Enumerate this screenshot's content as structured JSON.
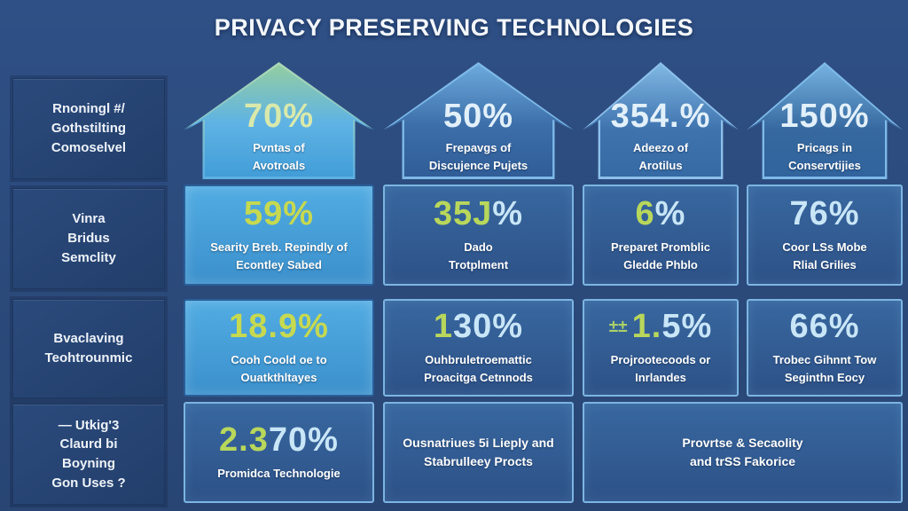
{
  "title": "PRIVACY PRESERVING TECHNOLOGIES",
  "colors": {
    "background": "#2b4a7b",
    "card_border_light_blue": "#7cb5e2",
    "card_dark_fill": "#32609a",
    "card_light_fill": "#45a2d9",
    "accent_green": "#b8d75b",
    "number_light_blue": "#c8e6f8",
    "title_text": "#f3f7fc"
  },
  "sidebar": {
    "items": [
      {
        "label": "Rnoningl #/\nGothstilting\nComoselvel"
      },
      {
        "label": "Vinra\nBridus\nSemclity"
      },
      {
        "label": "Bvaclaving\nTeohtrounmic"
      },
      {
        "label": "— Utkig'3\nClaurd bi\nBoyning\nGon Uses ?"
      }
    ]
  },
  "cards": {
    "r1c1": {
      "accent": "",
      "value": "70%",
      "label": "Pvntas of\nAvotroals"
    },
    "r1c2": {
      "accent": "",
      "value": "50%",
      "label": "Frepavgs of\nDiscujence Pujets"
    },
    "r1c3": {
      "accent": "",
      "value": "354.%",
      "label": "Adeezo of\nArotilus"
    },
    "r1c4": {
      "accent": "",
      "value": "150%",
      "label": "Pricags in\nConservtijies"
    },
    "r2c1": {
      "accent": "59%",
      "value": "",
      "label": "Searity Breb. Repindly of\nEcontley Sabed"
    },
    "r2c2": {
      "accent": "35J",
      "value": "%",
      "label": "Dado\nTrotplment"
    },
    "r2c3": {
      "accent": "6",
      "value": "%",
      "label": "Preparet Promblic\nGledde Phblo"
    },
    "r2c4": {
      "accent": "",
      "value": "76%",
      "label": "Coor LSs Mobe\nRlial Grilies"
    },
    "r3c1": {
      "accent": "18.9%",
      "value": "",
      "label": "Cooh Coold oe to\nOuatkthltayes"
    },
    "r3c2": {
      "accent": "1",
      "value": "30%",
      "label": "Ouhbruletroemattic\nProacitga Cetnnods"
    },
    "r3c3": {
      "prefix": "±±",
      "accent": "1.",
      "value": "5%",
      "label": "Projrootecoods or\nInrlandes"
    },
    "r3c4": {
      "accent": "",
      "value": "66%",
      "label": "Trobec Gihnnt Tow\nSeginthn Eocy"
    },
    "r4c1": {
      "accent": "2.3",
      "value": "70%",
      "label": "Promidca Technologie"
    },
    "r4c2": {
      "label": "Ousnatriues 5i Lieply and\nStabrulleey Procts"
    },
    "r4c3": {
      "label": "Provrtse & Secaolity\nand trSS Fakorice"
    }
  }
}
